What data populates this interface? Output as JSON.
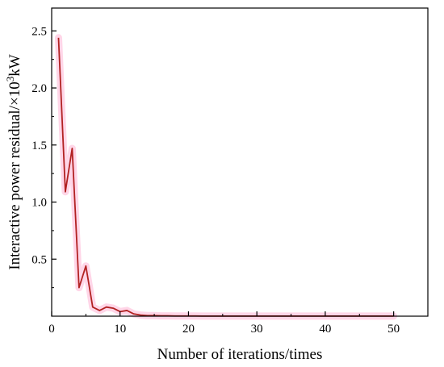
{
  "chart_data": {
    "type": "line",
    "xlabel": "Number of iterations/times",
    "ylabel_parts": {
      "main": "Interactive power residual/×10",
      "sup": "3",
      "unit": "kW"
    },
    "xlim": [
      0,
      55
    ],
    "ylim": [
      0,
      2.7
    ],
    "xticks": [
      0,
      10,
      20,
      30,
      40,
      50
    ],
    "yticks": [
      0.5,
      1.0,
      1.5,
      2.0,
      2.5
    ],
    "xtick_labels": [
      "0",
      "10",
      "20",
      "30",
      "40",
      "50"
    ],
    "ytick_labels": [
      "0.5",
      "1.0",
      "1.5",
      "2.0",
      "2.5"
    ],
    "grid": false,
    "series": [
      {
        "color": "#b22222",
        "band_color": "#ffc8e0",
        "x": [
          1,
          2,
          3,
          4,
          5,
          6,
          7,
          8,
          9,
          10,
          11,
          12,
          13,
          14,
          15,
          16,
          17,
          18,
          19,
          20,
          21,
          22,
          23,
          24,
          25,
          26,
          27,
          28,
          29,
          30,
          31,
          32,
          33,
          34,
          35,
          36,
          37,
          38,
          39,
          40,
          41,
          42,
          43,
          44,
          45,
          46,
          47,
          48,
          49,
          50
        ],
        "y": [
          2.44,
          1.09,
          1.47,
          0.25,
          0.44,
          0.08,
          0.05,
          0.08,
          0.07,
          0.04,
          0.05,
          0.02,
          0.01,
          0.005,
          0.005,
          0.003,
          0.003,
          0.002,
          0.002,
          0.002,
          0.002,
          0.001,
          0.001,
          0.001,
          0.001,
          0.001,
          0.001,
          0.001,
          0.001,
          0.001,
          0.001,
          0.001,
          0.001,
          0.001,
          0.001,
          0.001,
          0.001,
          0.001,
          0.001,
          0.001,
          0.001,
          0.001,
          0.001,
          0.001,
          0.001,
          0.001,
          0.001,
          0.001,
          0.001,
          0.001
        ]
      }
    ]
  }
}
